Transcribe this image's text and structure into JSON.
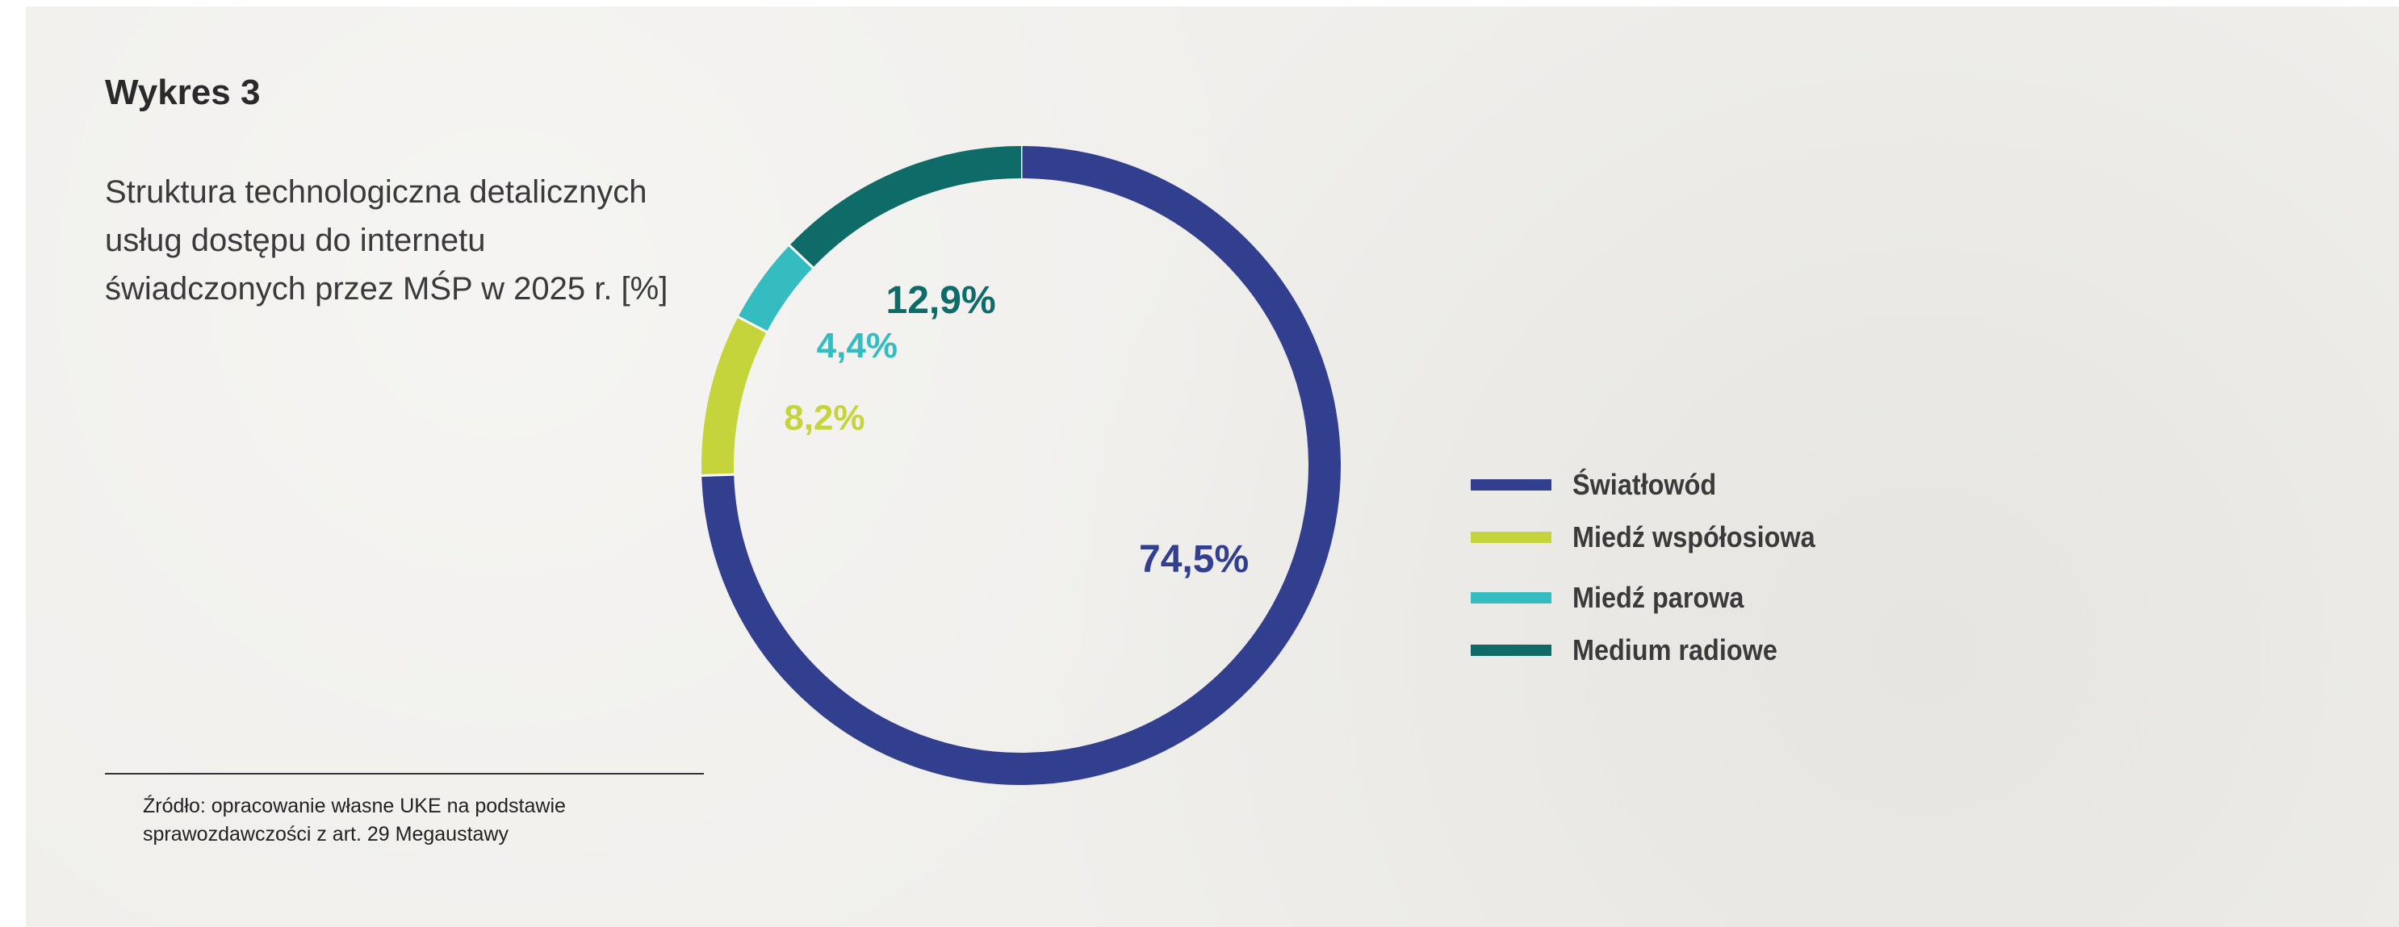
{
  "title": "Wykres 3",
  "subtitle_lines": [
    "Struktura technologiczna detalicznych",
    "usług dostępu do internetu",
    "świadczonych przez MŚP w 2025 r. [%]"
  ],
  "source_lines": [
    "Źródło: opracowanie własne UKE na podstawie",
    "sprawozdawczości z art. 29 Megaustawy"
  ],
  "chart_data": {
    "type": "pie",
    "variant": "donut",
    "categories": [
      "Światłowód",
      "Miedź współosiowa",
      "Miedź parowa",
      "Medium radiowe"
    ],
    "values": [
      74.5,
      8.2,
      4.4,
      12.9
    ],
    "data_labels": [
      "74,5%",
      "8,2%",
      "4,4%",
      "12,9%"
    ],
    "colors": [
      "#323f8f",
      "#c4d43a",
      "#34bcc1",
      "#0f6b68"
    ],
    "legend_position": "right",
    "start_angle_deg": 0,
    "direction": "clockwise"
  }
}
